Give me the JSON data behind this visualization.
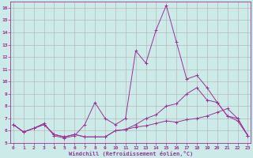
{
  "background_color": "#cceae7",
  "grid_color": "#b0b0b0",
  "line_color": "#993399",
  "marker_color": "#993399",
  "xlabel": "Windchill (Refroidissement éolien,°C)",
  "xlabel_color": "#993399",
  "tick_color": "#993399",
  "ylim": [
    5,
    16.5
  ],
  "xlim": [
    -0.3,
    23.3
  ],
  "yticks": [
    5,
    6,
    7,
    8,
    9,
    10,
    11,
    12,
    13,
    14,
    15,
    16
  ],
  "xticks": [
    0,
    1,
    2,
    3,
    4,
    5,
    6,
    7,
    8,
    9,
    10,
    11,
    12,
    13,
    14,
    15,
    16,
    17,
    18,
    19,
    20,
    21,
    22,
    23
  ],
  "line1": [
    6.5,
    5.9,
    6.2,
    6.5,
    5.7,
    5.5,
    5.7,
    5.5,
    5.5,
    5.5,
    6.0,
    6.1,
    6.3,
    6.4,
    6.6,
    6.8,
    6.7,
    6.9,
    7.0,
    7.2,
    7.5,
    7.8,
    7.0,
    5.6
  ],
  "line2": [
    6.5,
    5.9,
    6.2,
    6.5,
    5.7,
    5.5,
    5.7,
    5.5,
    5.5,
    5.5,
    6.0,
    6.1,
    6.5,
    7.0,
    7.3,
    8.0,
    8.2,
    9.0,
    9.5,
    8.5,
    8.3,
    7.2,
    7.0,
    5.6
  ],
  "line3": [
    6.5,
    5.9,
    6.2,
    6.6,
    5.6,
    5.4,
    5.6,
    6.5,
    8.3,
    7.0,
    6.5,
    7.0,
    12.5,
    11.5,
    14.2,
    16.2,
    13.2,
    10.2,
    10.5,
    9.5,
    8.3,
    7.2,
    6.8,
    5.6
  ]
}
